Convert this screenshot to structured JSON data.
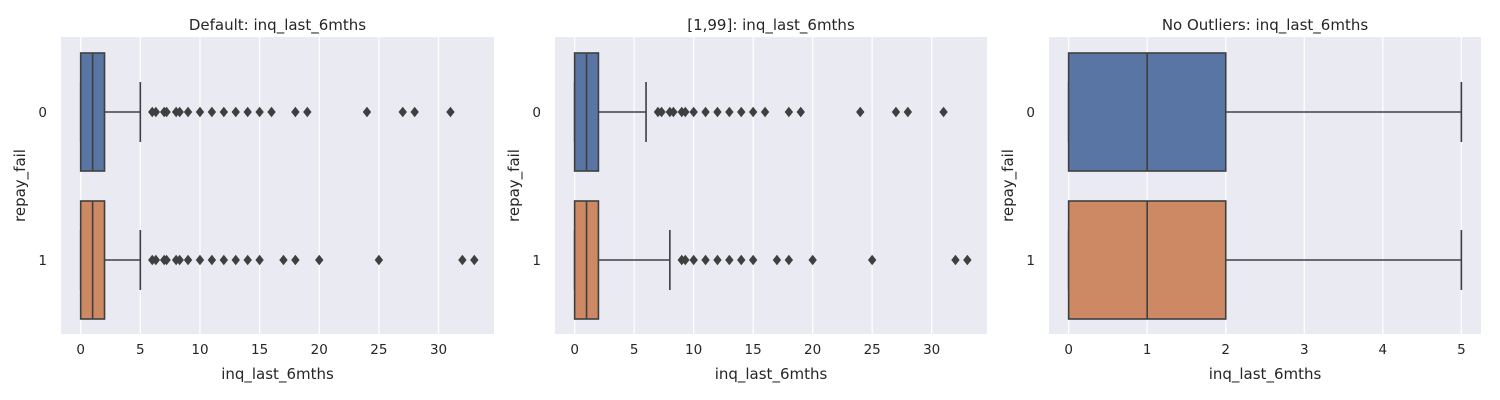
{
  "chart_data": [
    {
      "type": "box",
      "orientation": "horizontal",
      "title": "Default: inq_last_6mths",
      "xlabel": "inq_last_6mths",
      "ylabel": "repay_fail",
      "xlim": [
        -1.65,
        34.65
      ],
      "xticks": [
        0,
        5,
        10,
        15,
        20,
        25,
        30
      ],
      "grid": true,
      "categories": [
        "0",
        "1"
      ],
      "colors": [
        "#5875a4",
        "#cc8963"
      ],
      "series": [
        {
          "category": "0",
          "whislo": 0,
          "q1": 0,
          "median": 1,
          "q3": 2,
          "whishi": 5,
          "fliers": [
            6,
            6.3,
            7,
            7.2,
            8,
            8.3,
            9,
            10,
            11,
            12,
            13,
            14,
            15,
            16,
            18,
            19,
            24,
            27,
            28,
            31
          ]
        },
        {
          "category": "1",
          "whislo": 0,
          "q1": 0,
          "median": 1,
          "q3": 2,
          "whishi": 5,
          "fliers": [
            6,
            6.3,
            7,
            7.2,
            8,
            8.3,
            9,
            10,
            11,
            12,
            13,
            14,
            15,
            17,
            18,
            20,
            25,
            32,
            33
          ]
        }
      ]
    },
    {
      "type": "box",
      "orientation": "horizontal",
      "title": "[1,99]: inq_last_6mths",
      "xlabel": "inq_last_6mths",
      "ylabel": "repay_fail",
      "xlim": [
        -1.65,
        34.65
      ],
      "xticks": [
        0,
        5,
        10,
        15,
        20,
        25,
        30
      ],
      "grid": true,
      "categories": [
        "0",
        "1"
      ],
      "colors": [
        "#5875a4",
        "#cc8963"
      ],
      "series": [
        {
          "category": "0",
          "whislo": 0,
          "q1": 0,
          "median": 1,
          "q3": 2,
          "whishi": 6,
          "fliers": [
            7,
            7.3,
            8,
            8.3,
            9,
            9.3,
            10,
            11,
            12,
            13,
            14,
            15,
            16,
            18,
            19,
            24,
            27,
            28,
            31
          ]
        },
        {
          "category": "1",
          "whislo": 0,
          "q1": 0,
          "median": 1,
          "q3": 2,
          "whishi": 8,
          "fliers": [
            9,
            9.3,
            10,
            11,
            12,
            13,
            14,
            15,
            17,
            18,
            20,
            25,
            32,
            33
          ]
        }
      ]
    },
    {
      "type": "box",
      "orientation": "horizontal",
      "title": "No Outliers: inq_last_6mths",
      "xlabel": "inq_last_6mths",
      "ylabel": "repay_fail",
      "xlim": [
        -0.25,
        5.25
      ],
      "xticks": [
        0,
        1,
        2,
        3,
        4,
        5
      ],
      "grid": true,
      "categories": [
        "0",
        "1"
      ],
      "colors": [
        "#5875a4",
        "#cc8963"
      ],
      "series": [
        {
          "category": "0",
          "whislo": 0,
          "q1": 0,
          "median": 1,
          "q3": 2,
          "whishi": 5,
          "fliers": []
        },
        {
          "category": "1",
          "whislo": 0,
          "q1": 0,
          "median": 1,
          "q3": 2,
          "whishi": 5,
          "fliers": []
        }
      ]
    }
  ]
}
